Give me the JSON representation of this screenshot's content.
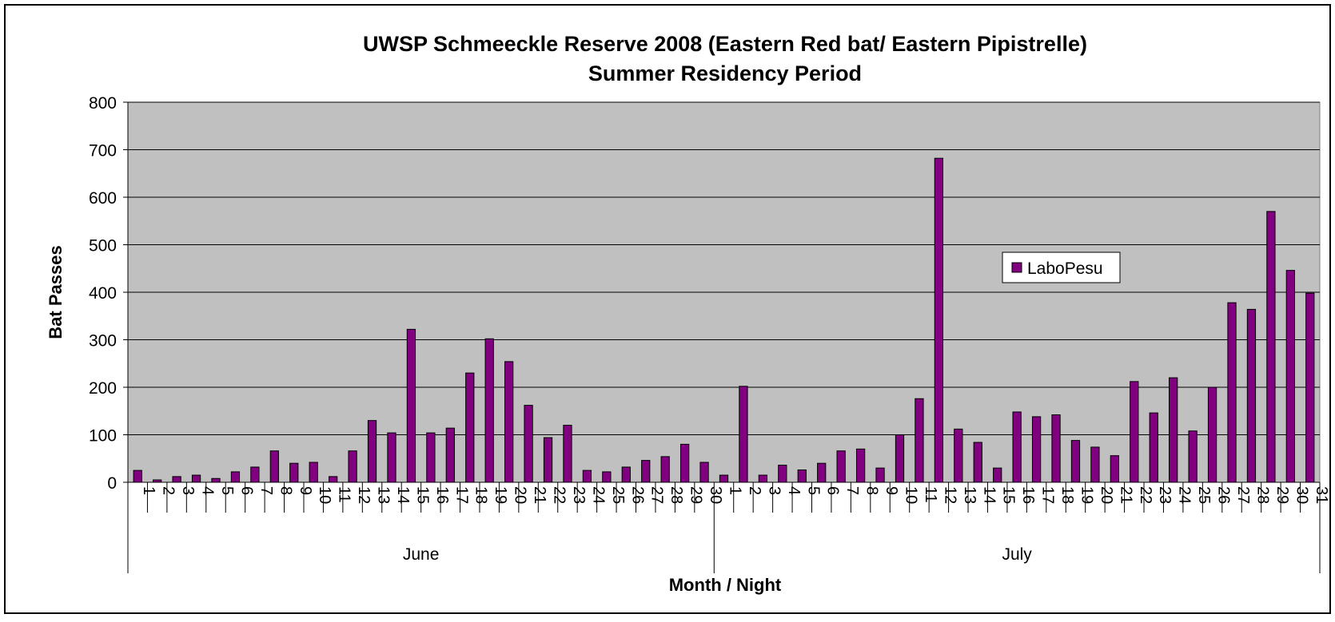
{
  "chart_data": {
    "type": "bar",
    "title": "UWSP Schmeeckle Reserve 2008 (Eastern Red bat/ Eastern Pipistrelle)",
    "subtitle": "Summer Residency Period",
    "xlabel": "Month / Night",
    "ylabel": "Bat Passes",
    "ylim": [
      0,
      800
    ],
    "yticks": [
      0,
      100,
      200,
      300,
      400,
      500,
      600,
      700,
      800
    ],
    "grid": true,
    "legend_position": "right",
    "colors": {
      "bar": "#800080",
      "plot_bg": "#c0c0c0",
      "gridline": "#000000"
    },
    "groups": [
      {
        "label": "June",
        "count": 30
      },
      {
        "label": "July",
        "count": 31
      }
    ],
    "categories": [
      "1",
      "2",
      "3",
      "4",
      "5",
      "6",
      "7",
      "8",
      "9",
      "10",
      "11",
      "12",
      "13",
      "14",
      "15",
      "16",
      "17",
      "18",
      "19",
      "20",
      "21",
      "22",
      "23",
      "24",
      "25",
      "26",
      "27",
      "28",
      "29",
      "30",
      "1",
      "2",
      "3",
      "4",
      "5",
      "6",
      "7",
      "8",
      "9",
      "10",
      "11",
      "12",
      "13",
      "14",
      "15",
      "16",
      "17",
      "18",
      "19",
      "20",
      "21",
      "22",
      "23",
      "24",
      "25",
      "26",
      "27",
      "28",
      "29",
      "30",
      "31"
    ],
    "series": [
      {
        "name": "LaboPesu",
        "values": [
          25,
          5,
          12,
          15,
          8,
          22,
          32,
          66,
          40,
          42,
          12,
          66,
          130,
          104,
          322,
          104,
          114,
          230,
          302,
          254,
          162,
          94,
          120,
          25,
          22,
          32,
          46,
          54,
          80,
          42,
          15,
          202,
          15,
          36,
          26,
          40,
          66,
          70,
          30,
          100,
          176,
          682,
          112,
          84,
          30,
          148,
          138,
          142,
          88,
          74,
          56,
          212,
          146,
          220,
          108,
          200,
          378,
          364,
          570,
          446,
          398
        ]
      }
    ]
  }
}
